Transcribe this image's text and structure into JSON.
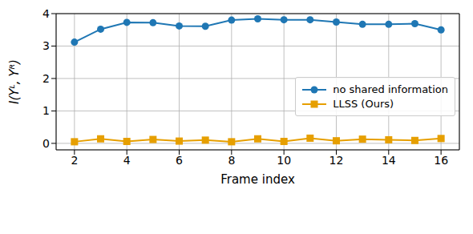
{
  "chart_data": {
    "type": "line",
    "x_label": "Frame index",
    "y_label": "I(Yᴸ, Yᴿ)",
    "x": [
      2,
      3,
      4,
      5,
      6,
      7,
      8,
      9,
      10,
      11,
      12,
      13,
      14,
      15,
      16
    ],
    "series": [
      {
        "name": "no shared information",
        "color": "#1f77b4",
        "marker": "circle",
        "values": [
          3.12,
          3.52,
          3.73,
          3.72,
          3.62,
          3.61,
          3.8,
          3.84,
          3.81,
          3.81,
          3.74,
          3.67,
          3.67,
          3.69,
          3.5
        ]
      },
      {
        "name": "LLSS (Ours)",
        "color": "#e69f00",
        "marker": "square",
        "values": [
          0.05,
          0.14,
          0.06,
          0.12,
          0.07,
          0.1,
          0.05,
          0.14,
          0.06,
          0.16,
          0.08,
          0.13,
          0.11,
          0.09,
          0.15
        ]
      }
    ],
    "xlim": [
      1.3,
      16.7
    ],
    "ylim": [
      -0.2,
      4
    ],
    "xticks": [
      2,
      4,
      6,
      8,
      10,
      12,
      14,
      16
    ],
    "yticks": [
      0,
      1,
      2,
      3,
      4
    ],
    "grid": true,
    "legend": "center right"
  }
}
